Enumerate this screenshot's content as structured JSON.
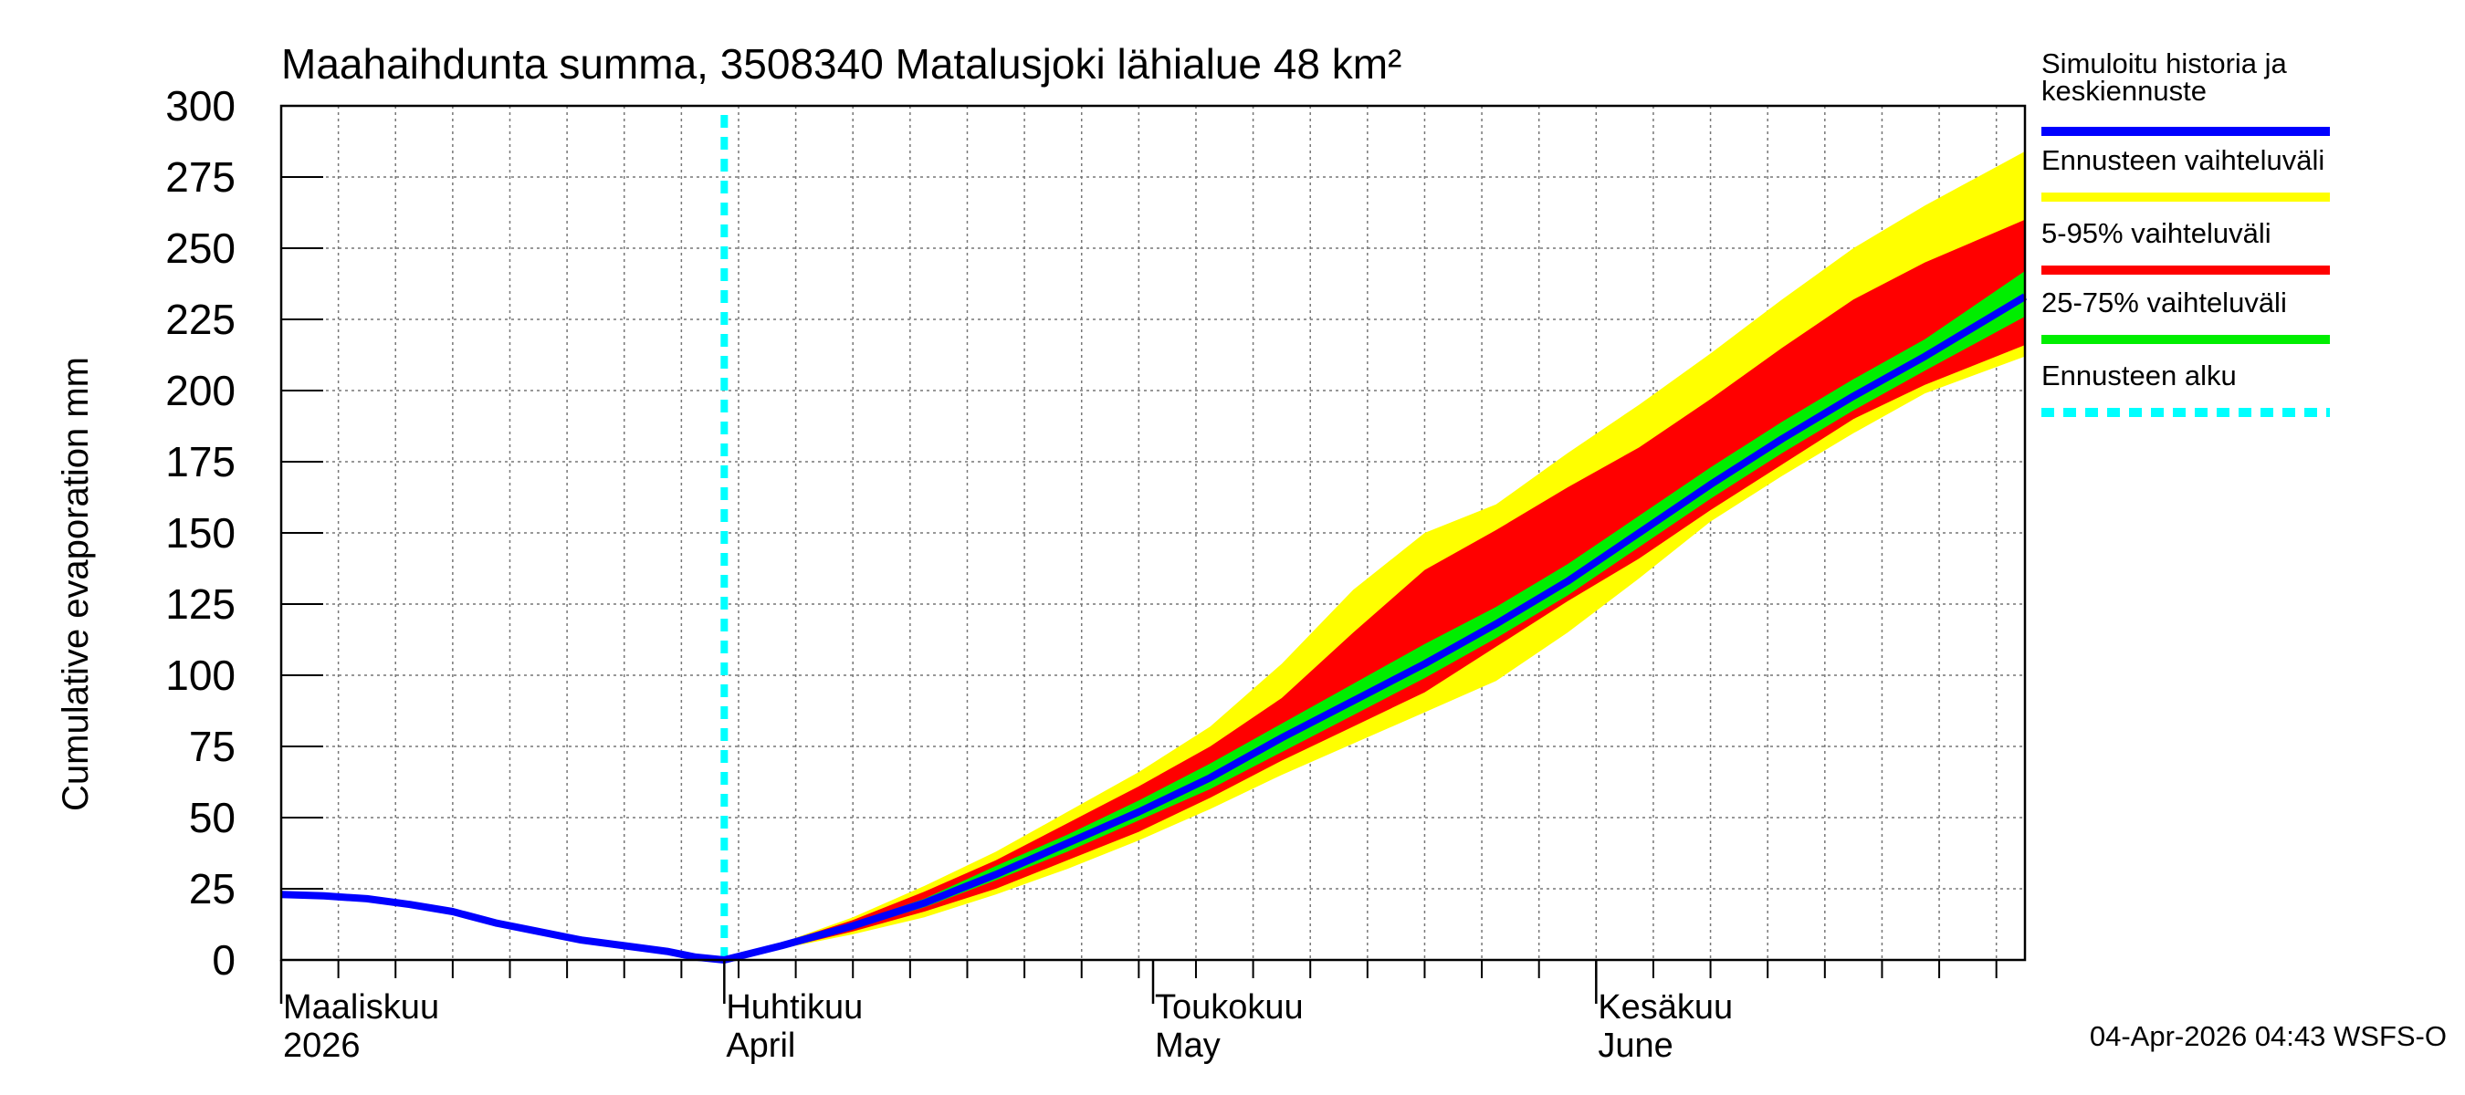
{
  "chart_data": {
    "type": "area",
    "title": "Maahaihdunta summa, 3508340 Matalusjoki lähialue 48 km²",
    "ylabel": "Cumulative evaporation   mm",
    "ylim": [
      0,
      300
    ],
    "yticks": [
      0,
      25,
      50,
      75,
      100,
      125,
      150,
      175,
      200,
      225,
      250,
      275,
      300
    ],
    "x_unit": "day of year 2026",
    "xlim": [
      60,
      182
    ],
    "forecast_start_day": 91,
    "month_labels": [
      {
        "day": 60,
        "line1": "Maaliskuu",
        "line2": "2026"
      },
      {
        "day": 91,
        "line1": "Huhtikuu",
        "line2": "April"
      },
      {
        "day": 121,
        "line1": "Toukokuu",
        "line2": "May"
      },
      {
        "day": 152,
        "line1": "Kesäkuu",
        "line2": "June"
      }
    ],
    "history": {
      "x": [
        60,
        63,
        66,
        69,
        72,
        75,
        78,
        81,
        84,
        87,
        89,
        91
      ],
      "y": [
        23,
        22.5,
        21.5,
        19.5,
        17,
        13,
        10,
        7,
        5,
        3,
        1,
        0
      ]
    },
    "median": {
      "x": [
        91,
        95,
        100,
        105,
        110,
        115,
        120,
        125,
        130,
        135,
        140,
        145,
        150,
        155,
        160,
        165,
        170,
        175,
        182
      ],
      "y": [
        0,
        5,
        12,
        20,
        30,
        41,
        52,
        64,
        78,
        91,
        104,
        118,
        133,
        150,
        167,
        183,
        198,
        212,
        233
      ]
    },
    "band_x": [
      91,
      95,
      100,
      105,
      110,
      115,
      120,
      125,
      130,
      135,
      140,
      145,
      150,
      155,
      160,
      165,
      170,
      175,
      182
    ],
    "bands": [
      {
        "name": "Ennusteen vaihteluväli",
        "color": "#ffff00",
        "lower": [
          0,
          4,
          9,
          15,
          23,
          32,
          42,
          53,
          65,
          76,
          87,
          98,
          115,
          134,
          154,
          170,
          185,
          199,
          212
        ],
        "upper": [
          0,
          6,
          15,
          26,
          38,
          52,
          66,
          82,
          104,
          130,
          150,
          160,
          178,
          195,
          213,
          232,
          250,
          265,
          284
        ]
      },
      {
        "name": "5-95% vaihteluväli",
        "color": "#ff0000",
        "lower": [
          0,
          4,
          10,
          17,
          25,
          35,
          45,
          57,
          70,
          82,
          94,
          110,
          126,
          141,
          158,
          174,
          190,
          202,
          216
        ],
        "upper": [
          0,
          6,
          14,
          24,
          35,
          48,
          61,
          75,
          92,
          115,
          137,
          151,
          166,
          180,
          197,
          215,
          232,
          245,
          260
        ]
      },
      {
        "name": "25-75% vaihteluväli",
        "color": "#00ee00",
        "lower": [
          0,
          4.5,
          11,
          18.5,
          28,
          38,
          49,
          60,
          73,
          86,
          99,
          113,
          128,
          145,
          162,
          178,
          193,
          207,
          226
        ],
        "upper": [
          0,
          5.5,
          13,
          21.5,
          33,
          44,
          56,
          69,
          83,
          97,
          111,
          124,
          139,
          156,
          173,
          189,
          204,
          218,
          242
        ]
      }
    ],
    "legend": [
      {
        "label": "Simuloitu historia ja keskiennuste",
        "line1": "Simuloitu historia ja",
        "line2": "keskiennuste",
        "color": "#0000ff",
        "style": "solid"
      },
      {
        "label": "Ennusteen vaihteluväli",
        "line1": "Ennusteen vaihteluväli",
        "line2": "",
        "color": "#ffff00",
        "style": "solid"
      },
      {
        "label": "5-95% vaihteluväli",
        "line1": "5-95% vaihteluväli",
        "line2": "",
        "color": "#ff0000",
        "style": "solid"
      },
      {
        "label": "25-75% vaihteluväli",
        "line1": "25-75% vaihteluväli",
        "line2": "",
        "color": "#00ee00",
        "style": "solid"
      },
      {
        "label": "Ennusteen alku",
        "line1": "Ennusteen alku",
        "line2": "",
        "color": "#00ffff",
        "style": "dashed"
      }
    ],
    "legend_position": "right",
    "grid": true
  },
  "footer": {
    "timestamp": "04-Apr-2026 04:43 WSFS-O"
  }
}
